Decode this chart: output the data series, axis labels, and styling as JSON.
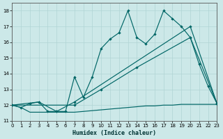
{
  "xlabel": "Humidex (Indice chaleur)",
  "bg_color": "#cce8e8",
  "grid_color": "#b0d4d4",
  "line_color": "#006666",
  "xlim": [
    0,
    23
  ],
  "ylim": [
    11,
    18.5
  ],
  "xticks": [
    0,
    1,
    2,
    3,
    4,
    5,
    6,
    7,
    8,
    9,
    10,
    11,
    12,
    13,
    14,
    15,
    16,
    17,
    18,
    19,
    20,
    21,
    22,
    23
  ],
  "yticks": [
    11,
    12,
    13,
    14,
    15,
    16,
    17,
    18
  ],
  "jagged_x": [
    0,
    1,
    2,
    3,
    4,
    5,
    6,
    7,
    8,
    9,
    10,
    11,
    12,
    13,
    14,
    15,
    16,
    17,
    18,
    19,
    20,
    21,
    22,
    23
  ],
  "jagged_y": [
    12.0,
    11.85,
    12.1,
    12.2,
    11.6,
    11.6,
    11.6,
    13.8,
    12.5,
    13.8,
    15.6,
    16.2,
    16.6,
    18.0,
    16.3,
    15.9,
    16.5,
    18.0,
    17.5,
    17.0,
    16.3,
    14.6,
    13.2,
    12.1
  ],
  "flat_x": [
    0,
    1,
    2,
    3,
    4,
    5,
    6,
    7,
    8,
    9,
    10,
    11,
    12,
    13,
    14,
    15,
    16,
    17,
    18,
    19,
    20,
    21,
    22,
    23
  ],
  "flat_y": [
    12.0,
    11.85,
    11.55,
    11.55,
    11.55,
    11.55,
    11.55,
    11.55,
    11.6,
    11.65,
    11.7,
    11.75,
    11.8,
    11.85,
    11.9,
    11.95,
    11.95,
    12.0,
    12.0,
    12.05,
    12.05,
    12.05,
    12.05,
    12.05
  ],
  "diag_lower_x": [
    0,
    7,
    10,
    14,
    20,
    23
  ],
  "diag_lower_y": [
    12.0,
    12.0,
    13.0,
    14.4,
    16.3,
    12.1
  ],
  "diag_upper_x": [
    0,
    3,
    5,
    7,
    20,
    23
  ],
  "diag_upper_y": [
    12.0,
    12.2,
    11.6,
    12.2,
    17.0,
    12.1
  ]
}
